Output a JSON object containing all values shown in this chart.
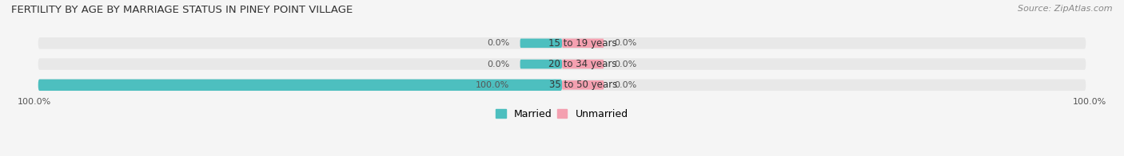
{
  "title": "FERTILITY BY AGE BY MARRIAGE STATUS IN PINEY POINT VILLAGE",
  "source": "Source: ZipAtlas.com",
  "categories": [
    "15 to 19 years",
    "20 to 34 years",
    "35 to 50 years"
  ],
  "married_values": [
    0.0,
    0.0,
    100.0
  ],
  "unmarried_values": [
    0.0,
    0.0,
    0.0
  ],
  "married_color": "#4DBFBF",
  "unmarried_color": "#F4A0B0",
  "bar_bg_color": "#E8E8E8",
  "background_color": "#F5F5F5",
  "title_fontsize": 9.5,
  "source_fontsize": 8,
  "legend_fontsize": 9,
  "category_fontsize": 8.5,
  "value_fontsize": 8
}
